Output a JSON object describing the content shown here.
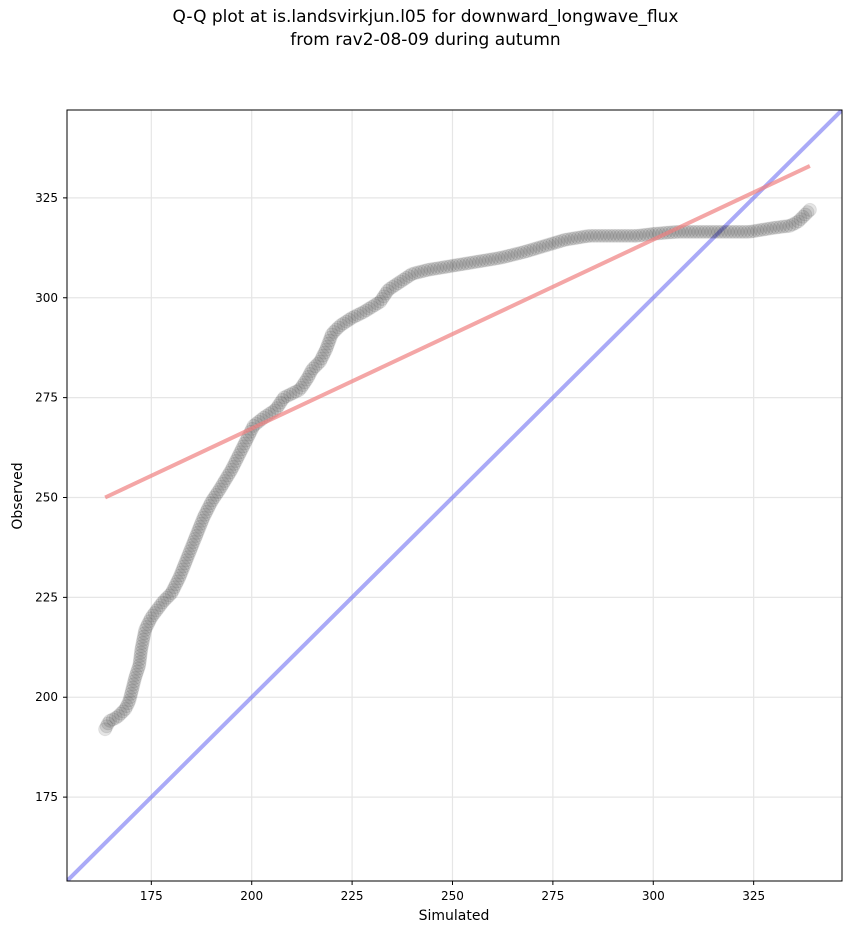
{
  "title_line1": "Q-Q plot at is.landsvirkjun.l05 for downward_longwave_flux",
  "title_line2": "from rav2-08-09 during autumn",
  "chart_data": {
    "type": "scatter",
    "title": "Q-Q plot at is.landsvirkjun.l05 for downward_longwave_flux from rav2-08-09 during autumn",
    "xlabel": "Simulated",
    "ylabel": "Observed",
    "xlim": [
      154,
      347
    ],
    "ylim": [
      154,
      347
    ],
    "xticks": [
      175,
      200,
      225,
      250,
      275,
      300,
      325
    ],
    "yticks": [
      175,
      200,
      225,
      250,
      275,
      300,
      325
    ],
    "grid": true,
    "colors": {
      "points": "#000000",
      "fit_line": "#f08080",
      "identity_line": "#6464f0"
    },
    "fit_line": {
      "x": [
        163.5,
        339
      ],
      "y": [
        250,
        333
      ]
    },
    "identity_line": {
      "x": [
        154,
        347
      ],
      "y": [
        154,
        347
      ]
    },
    "qq_curve": [
      [
        163.5,
        192
      ],
      [
        164.5,
        194
      ],
      [
        166.5,
        195
      ],
      [
        168.5,
        197
      ],
      [
        169.5,
        199
      ],
      [
        170,
        201
      ],
      [
        171,
        205
      ],
      [
        172,
        208
      ],
      [
        172.5,
        212
      ],
      [
        173.5,
        217
      ],
      [
        175,
        220
      ],
      [
        178,
        224
      ],
      [
        180,
        226
      ],
      [
        182,
        230
      ],
      [
        184,
        235
      ],
      [
        186,
        240
      ],
      [
        188,
        245
      ],
      [
        190,
        249
      ],
      [
        192,
        252
      ],
      [
        195,
        257
      ],
      [
        197,
        261
      ],
      [
        199,
        265
      ],
      [
        200.5,
        268
      ],
      [
        203,
        270
      ],
      [
        206,
        272
      ],
      [
        208,
        275
      ],
      [
        212,
        277
      ],
      [
        214,
        280
      ],
      [
        215,
        282
      ],
      [
        217,
        284
      ],
      [
        218.5,
        287
      ],
      [
        220,
        291
      ],
      [
        222,
        293
      ],
      [
        225,
        295
      ],
      [
        228,
        296.5
      ],
      [
        232,
        299
      ],
      [
        234,
        302
      ],
      [
        237,
        304
      ],
      [
        240,
        306
      ],
      [
        244,
        307
      ],
      [
        250,
        308
      ],
      [
        256,
        309
      ],
      [
        262,
        310
      ],
      [
        268,
        311.5
      ],
      [
        273,
        313
      ],
      [
        278,
        314.5
      ],
      [
        284,
        315.5
      ],
      [
        290,
        315.5
      ],
      [
        296,
        315.5
      ],
      [
        300,
        316
      ],
      [
        306,
        316.5
      ],
      [
        312,
        316.5
      ],
      [
        318,
        316.5
      ],
      [
        324,
        316.5
      ],
      [
        330,
        317.5
      ],
      [
        334,
        318
      ],
      [
        336,
        319
      ],
      [
        337.5,
        320.5
      ],
      [
        339,
        322
      ]
    ],
    "n_points": 300
  }
}
